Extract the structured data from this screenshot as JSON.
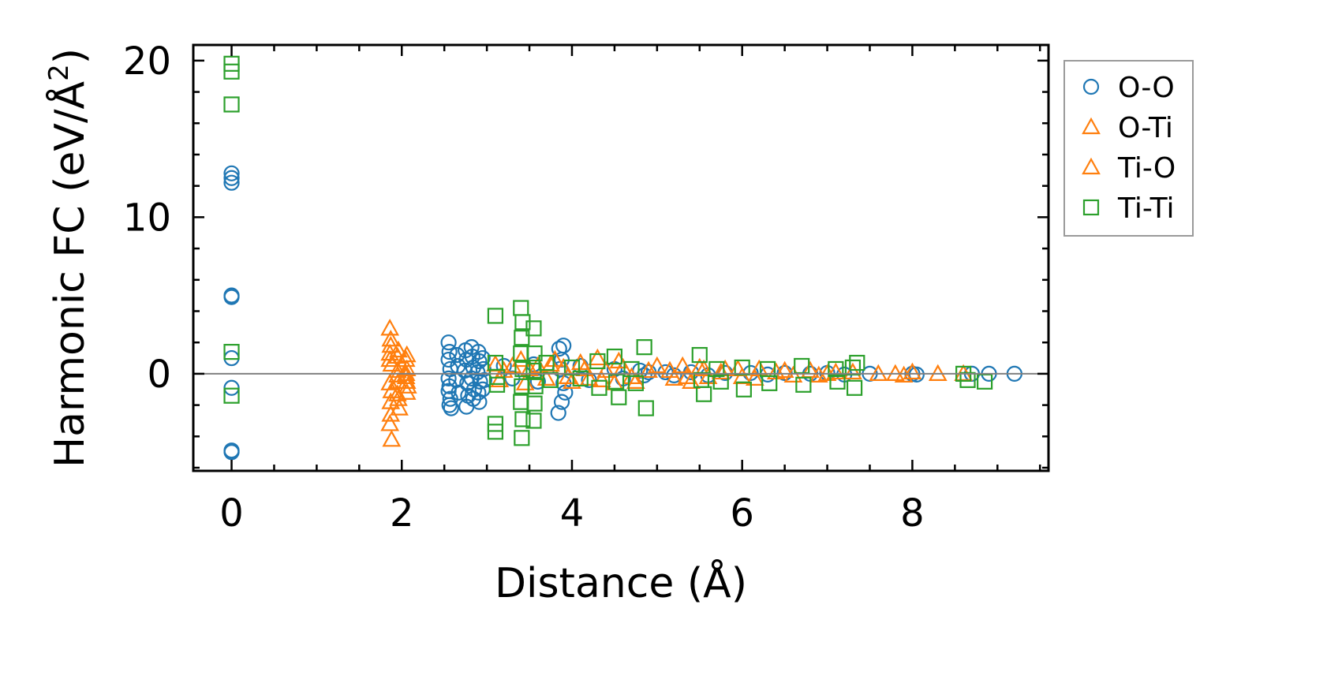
{
  "chart_data": {
    "type": "scatter",
    "xlabel": "Distance (Å)",
    "ylabel": "Harmonic FC (eV/Å²)",
    "ylabel_parts": {
      "main": "Harmonic FC (eV/Å",
      "sup": "2",
      "end": ")"
    },
    "xlim": [
      -0.45,
      9.6
    ],
    "ylim": [
      -6.2,
      21
    ],
    "xticks": [
      0,
      2,
      4,
      6,
      8
    ],
    "xtick_labels": [
      "0",
      "2",
      "4",
      "6",
      "8"
    ],
    "yticks": [
      0,
      10,
      20
    ],
    "ytick_labels": [
      "0",
      "10",
      "20"
    ],
    "legend_position": "outside-right-top",
    "zero_line": true,
    "grid": false,
    "colors": {
      "O-O": "#1f77b4",
      "O-Ti": "#ff7f0e",
      "Ti-O": "#ff7f0e",
      "Ti-Ti": "#2ca02c",
      "zero_line": "#808080"
    },
    "series": [
      {
        "name": "O-O",
        "marker": "circle",
        "points": [
          [
            0,
            12.8
          ],
          [
            0,
            12.5
          ],
          [
            0,
            12.2
          ],
          [
            0,
            5.0
          ],
          [
            0,
            4.9
          ],
          [
            0,
            1.0
          ],
          [
            0,
            -0.9
          ],
          [
            0,
            -4.9
          ],
          [
            0,
            -5.0
          ],
          [
            2.55,
            2.0
          ],
          [
            2.56,
            1.4
          ],
          [
            2.55,
            0.9
          ],
          [
            2.57,
            0.3
          ],
          [
            2.55,
            -0.3
          ],
          [
            2.56,
            -0.8
          ],
          [
            2.55,
            -1.1
          ],
          [
            2.57,
            -1.6
          ],
          [
            2.56,
            -2.0
          ],
          [
            2.58,
            -2.2
          ],
          [
            2.65,
            1.2
          ],
          [
            2.66,
            0.5
          ],
          [
            2.64,
            -0.4
          ],
          [
            2.67,
            -1.2
          ],
          [
            2.75,
            1.5
          ],
          [
            2.76,
            0.9
          ],
          [
            2.74,
            0.2
          ],
          [
            2.77,
            -0.6
          ],
          [
            2.78,
            -1.4
          ],
          [
            2.76,
            -2.1
          ],
          [
            2.82,
            1.7
          ],
          [
            2.83,
            1.1
          ],
          [
            2.84,
            0.4
          ],
          [
            2.82,
            -0.3
          ],
          [
            2.85,
            -1.0
          ],
          [
            2.84,
            -1.6
          ],
          [
            2.9,
            1.4
          ],
          [
            2.91,
            0.8
          ],
          [
            2.89,
            0.1
          ],
          [
            2.92,
            -0.5
          ],
          [
            2.9,
            -1.2
          ],
          [
            2.91,
            -1.8
          ],
          [
            2.95,
            1.0
          ],
          [
            2.96,
            0.3
          ],
          [
            2.97,
            -0.4
          ],
          [
            2.95,
            -1.0
          ],
          [
            3.2,
            0.5
          ],
          [
            3.3,
            -0.3
          ],
          [
            3.55,
            0.6
          ],
          [
            3.6,
            -0.5
          ],
          [
            3.85,
            1.6
          ],
          [
            3.9,
            1.8
          ],
          [
            3.88,
            0.9
          ],
          [
            3.86,
            0.3
          ],
          [
            3.9,
            -0.6
          ],
          [
            3.92,
            -1.2
          ],
          [
            3.88,
            -1.8
          ],
          [
            3.84,
            -2.5
          ],
          [
            4.1,
            0.5
          ],
          [
            4.2,
            -0.4
          ],
          [
            4.5,
            0.3
          ],
          [
            4.6,
            -0.3
          ],
          [
            4.8,
            0.2
          ],
          [
            4.85,
            -0.1
          ],
          [
            4.9,
            0.1
          ],
          [
            5.1,
            0.1
          ],
          [
            5.2,
            -0.1
          ],
          [
            5.4,
            0.1
          ],
          [
            5.6,
            -0.1
          ],
          [
            5.8,
            0.05
          ],
          [
            6.1,
            0.05
          ],
          [
            6.3,
            -0.05
          ],
          [
            6.5,
            0.05
          ],
          [
            6.8,
            0.0
          ],
          [
            7.0,
            0.05
          ],
          [
            7.2,
            -0.05
          ],
          [
            7.5,
            0.0
          ],
          [
            8.0,
            0.0
          ],
          [
            8.05,
            -0.05
          ],
          [
            8.7,
            0.0
          ],
          [
            8.9,
            0.0
          ],
          [
            9.2,
            0.0
          ]
        ]
      },
      {
        "name": "O-Ti",
        "marker": "triangle",
        "points": [
          [
            1.86,
            2.9
          ],
          [
            1.87,
            1.8
          ],
          [
            1.86,
            1.3
          ],
          [
            1.88,
            0.6
          ],
          [
            1.86,
            -0.6
          ],
          [
            1.87,
            -1.8
          ],
          [
            1.86,
            -3.2
          ],
          [
            1.88,
            -4.2
          ],
          [
            1.95,
            1.1
          ],
          [
            1.95,
            0.2
          ],
          [
            1.96,
            -0.5
          ],
          [
            1.95,
            -1.3
          ],
          [
            1.97,
            -2.2
          ],
          [
            2.05,
            0.9
          ],
          [
            2.06,
            0.3
          ],
          [
            2.05,
            -0.2
          ],
          [
            2.07,
            -0.8
          ],
          [
            2.06,
            -1.2
          ],
          [
            3.1,
            0.6
          ],
          [
            3.15,
            -0.4
          ],
          [
            3.3,
            0.5
          ],
          [
            3.4,
            0.9
          ],
          [
            3.45,
            -0.6
          ],
          [
            3.6,
            0.5
          ],
          [
            3.7,
            -0.3
          ],
          [
            3.8,
            0.9
          ],
          [
            3.9,
            0.4
          ],
          [
            4.0,
            -0.5
          ],
          [
            4.1,
            0.7
          ],
          [
            4.2,
            -0.3
          ],
          [
            4.3,
            1.0
          ],
          [
            4.4,
            0.2
          ],
          [
            4.5,
            -0.6
          ],
          [
            4.6,
            0.4
          ],
          [
            4.7,
            -0.2
          ],
          [
            5.0,
            0.5
          ],
          [
            5.2,
            -0.3
          ],
          [
            5.3,
            0.5
          ],
          [
            5.4,
            -0.5
          ],
          [
            5.5,
            0.4
          ],
          [
            5.6,
            -0.2
          ],
          [
            5.8,
            0.3
          ],
          [
            6.0,
            -0.2
          ],
          [
            6.2,
            0.3
          ],
          [
            6.4,
            0.1
          ],
          [
            6.6,
            -0.1
          ],
          [
            6.8,
            0.2
          ],
          [
            7.0,
            0.0
          ],
          [
            7.3,
            0.1
          ],
          [
            7.8,
            0.0
          ],
          [
            8.0,
            0.1
          ],
          [
            8.3,
            0.0
          ]
        ]
      },
      {
        "name": "Ti-O",
        "marker": "triangle",
        "points": [
          [
            1.87,
            2.2
          ],
          [
            1.86,
            0.9
          ],
          [
            1.88,
            -1.1
          ],
          [
            1.87,
            -2.6
          ],
          [
            1.96,
            1.5
          ],
          [
            1.95,
            -0.1
          ],
          [
            1.96,
            -1.6
          ],
          [
            2.06,
            1.2
          ],
          [
            2.05,
            0.0
          ],
          [
            2.06,
            -0.5
          ],
          [
            3.2,
            0.2
          ],
          [
            3.5,
            0.3
          ],
          [
            3.75,
            0.6
          ],
          [
            3.95,
            -0.2
          ],
          [
            4.15,
            0.3
          ],
          [
            4.35,
            -0.4
          ],
          [
            4.55,
            0.8
          ],
          [
            4.75,
            -0.5
          ],
          [
            4.9,
            0.2
          ],
          [
            5.15,
            0.2
          ],
          [
            5.35,
            -0.2
          ],
          [
            5.55,
            0.3
          ],
          [
            5.75,
            0.1
          ],
          [
            5.95,
            0.3
          ],
          [
            6.15,
            -0.3
          ],
          [
            6.5,
            0.2
          ],
          [
            6.9,
            -0.1
          ],
          [
            7.1,
            0.1
          ],
          [
            7.6,
            0.0
          ],
          [
            7.9,
            -0.1
          ],
          [
            8.6,
            0.0
          ]
        ]
      },
      {
        "name": "Ti-Ti",
        "marker": "square",
        "points": [
          [
            0,
            19.8
          ],
          [
            0,
            19.3
          ],
          [
            0,
            17.2
          ],
          [
            0,
            1.4
          ],
          [
            0,
            -1.4
          ],
          [
            3.1,
            3.7
          ],
          [
            3.1,
            0.7
          ],
          [
            3.12,
            -0.2
          ],
          [
            3.12,
            -0.7
          ],
          [
            3.1,
            -3.2
          ],
          [
            3.1,
            -3.7
          ],
          [
            3.4,
            4.2
          ],
          [
            3.42,
            3.3
          ],
          [
            3.41,
            2.3
          ],
          [
            3.4,
            1.3
          ],
          [
            3.42,
            0.3
          ],
          [
            3.41,
            -0.8
          ],
          [
            3.4,
            -1.8
          ],
          [
            3.42,
            -2.9
          ],
          [
            3.41,
            -4.1
          ],
          [
            3.55,
            2.9
          ],
          [
            3.56,
            1.3
          ],
          [
            3.55,
            0.2
          ],
          [
            3.57,
            -0.8
          ],
          [
            3.56,
            -1.9
          ],
          [
            3.55,
            -3.0
          ],
          [
            3.7,
            0.7
          ],
          [
            3.75,
            -0.4
          ],
          [
            4.0,
            0.4
          ],
          [
            4.1,
            -0.3
          ],
          [
            4.3,
            0.8
          ],
          [
            4.32,
            -0.9
          ],
          [
            4.5,
            1.1
          ],
          [
            4.52,
            -0.5
          ],
          [
            4.55,
            -1.5
          ],
          [
            4.85,
            1.7
          ],
          [
            4.87,
            -2.2
          ],
          [
            4.7,
            0.3
          ],
          [
            4.75,
            -0.6
          ],
          [
            5.5,
            1.2
          ],
          [
            5.52,
            -0.4
          ],
          [
            5.55,
            -1.3
          ],
          [
            5.7,
            0.3
          ],
          [
            5.75,
            -0.5
          ],
          [
            6.0,
            0.4
          ],
          [
            6.02,
            -1.0
          ],
          [
            6.3,
            0.3
          ],
          [
            6.32,
            -0.6
          ],
          [
            6.7,
            0.5
          ],
          [
            6.72,
            -0.7
          ],
          [
            7.1,
            0.3
          ],
          [
            7.12,
            -0.5
          ],
          [
            7.3,
            0.4
          ],
          [
            7.32,
            -0.9
          ],
          [
            7.35,
            0.7
          ],
          [
            8.6,
            0.0
          ],
          [
            8.65,
            -0.4
          ],
          [
            8.85,
            -0.5
          ]
        ]
      }
    ]
  }
}
